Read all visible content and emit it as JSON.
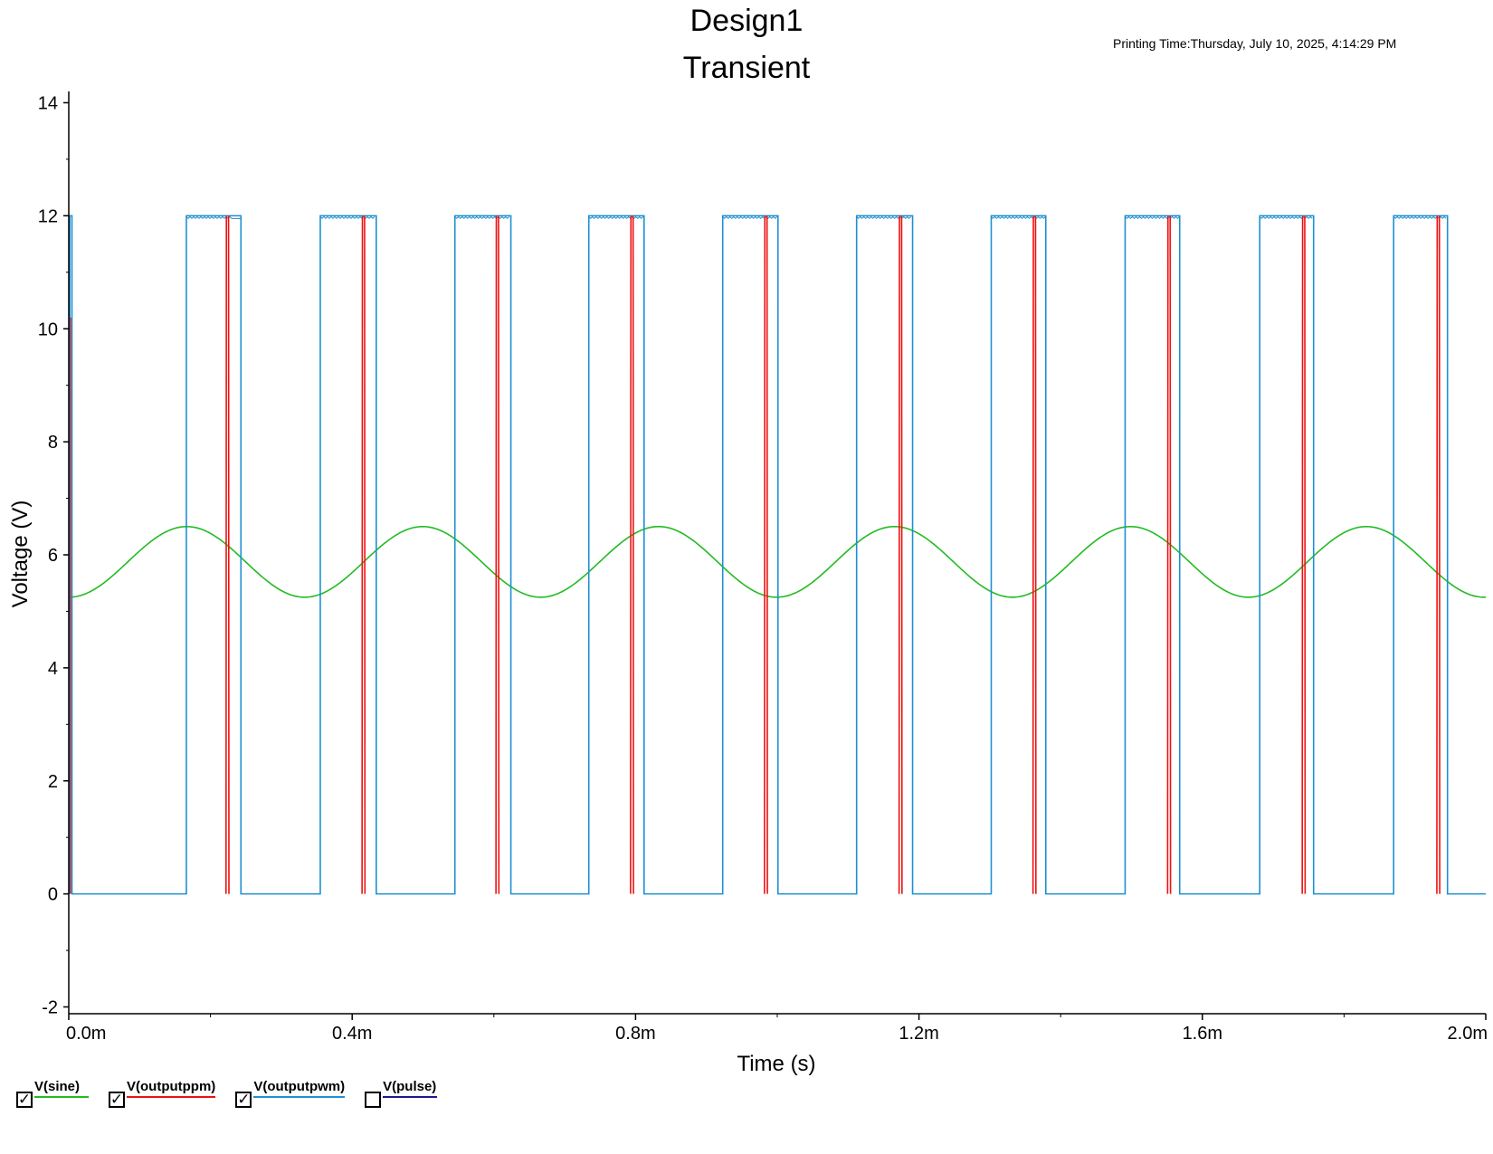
{
  "printing_time": "Printing Time:Thursday, July 10, 2025, 4:14:29 PM",
  "colors": {
    "sine": "#22bb22",
    "ppm": "#ee1111",
    "pwm": "#1e90d2",
    "pulse": "#1a1a8c"
  },
  "legend": [
    {
      "label": "V(sine)",
      "checked": true,
      "color": "#22bb22"
    },
    {
      "label": "V(outputppm)",
      "checked": true,
      "color": "#ee1111"
    },
    {
      "label": "V(outputpwm)",
      "checked": true,
      "color": "#1e90d2"
    },
    {
      "label": "V(pulse)",
      "checked": false,
      "color": "#1a1a8c"
    }
  ],
  "chart_data": {
    "type": "line",
    "title": "Design1",
    "subtitle": "Transient",
    "xlabel": "Time (s)",
    "ylabel": "Voltage (V)",
    "xlim": [
      0,
      0.002
    ],
    "ylim": [
      -2,
      14
    ],
    "xticks": [
      0,
      0.0004,
      0.0008,
      0.0012,
      0.0016,
      0.002
    ],
    "xtick_labels": [
      "0.0m",
      "0.4m",
      "0.8m",
      "1.2m",
      "1.6m",
      "2.0m"
    ],
    "yticks": [
      -2,
      0,
      2,
      4,
      6,
      8,
      10,
      12,
      14
    ],
    "grid": false,
    "series": [
      {
        "name": "V(sine)",
        "kind": "sine",
        "offset": 5.875,
        "amplitude": 0.625,
        "period": 0.000333,
        "min_at": 0.0
      },
      {
        "name": "V(outputpwm)",
        "kind": "pulses",
        "low": 0,
        "high": 12,
        "pulses": [
          [
            0.0,
            4.5e-06
          ],
          [
            0.000166,
            0.000243
          ],
          [
            0.000355,
            0.000434
          ],
          [
            0.000545,
            0.000624
          ],
          [
            0.000734,
            0.000812
          ],
          [
            0.000923,
            0.001001
          ],
          [
            0.001112,
            0.001191
          ],
          [
            0.001302,
            0.001379
          ],
          [
            0.001491,
            0.001568
          ],
          [
            0.001681,
            0.001757
          ],
          [
            0.00187,
            0.001946
          ]
        ]
      },
      {
        "name": "V(outputppm)",
        "kind": "spikes",
        "low": 0,
        "high": 12,
        "times": [
          0.000224,
          0.000416,
          0.000605,
          0.000795,
          0.000984,
          0.001174,
          0.001363,
          0.001553,
          0.001743,
          0.001933
        ]
      }
    ]
  }
}
